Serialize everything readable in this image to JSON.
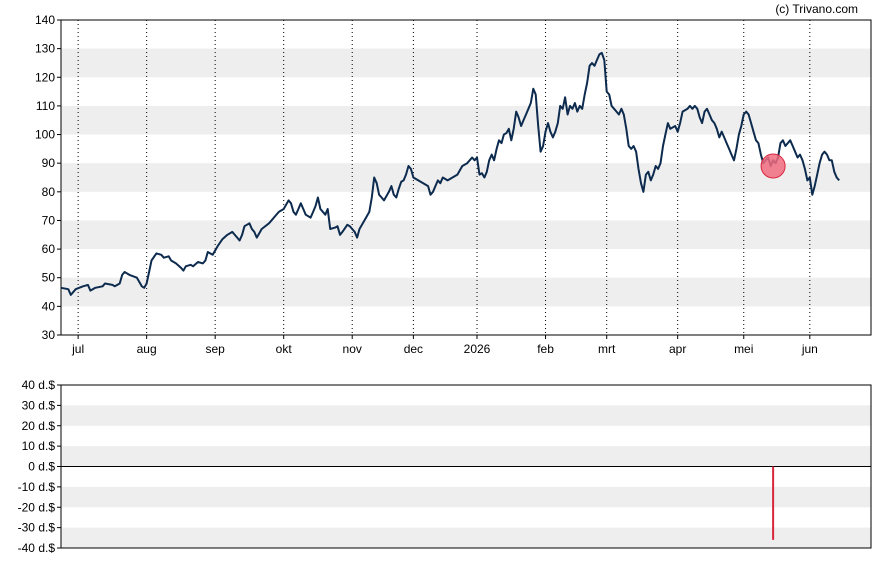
{
  "copyright": "(c) Trivano.com",
  "colors": {
    "price_line": "#0d2b4e",
    "band": "#eeeeee",
    "grid": "#000000",
    "marker_fill": "#f06b7f",
    "marker_stroke": "#d9263f",
    "volume_bar": "#d9263f",
    "zero_line": "#000000"
  },
  "chart_data": [
    {
      "type": "line",
      "name": "price-chart",
      "ylim": [
        30,
        140
      ],
      "yticks": [
        "30",
        "40",
        "50",
        "60",
        "70",
        "80",
        "90",
        "100",
        "110",
        "120",
        "130",
        "140"
      ],
      "month_labels": [
        "jul",
        "aug",
        "sep",
        "okt",
        "nov",
        "dec",
        "2026",
        "feb",
        "mrt",
        "apr",
        "mei",
        "jun"
      ],
      "month_positions": [
        7,
        35,
        63,
        91,
        119,
        144,
        170,
        198,
        223,
        252,
        279,
        306
      ],
      "x_range": [
        0,
        331
      ],
      "grid": "vertical dotted at month starts, alternating horizontal bands",
      "series_points": [
        [
          0,
          46.5
        ],
        [
          3,
          46
        ],
        [
          4,
          44
        ],
        [
          6,
          46
        ],
        [
          9,
          47
        ],
        [
          11,
          47.5
        ],
        [
          12,
          45.5
        ],
        [
          14,
          46.5
        ],
        [
          17,
          47
        ],
        [
          18,
          48
        ],
        [
          21,
          47.5
        ],
        [
          22,
          47
        ],
        [
          23,
          47.5
        ],
        [
          24,
          48
        ],
        [
          25,
          51
        ],
        [
          26,
          52
        ],
        [
          28,
          51
        ],
        [
          31,
          50
        ],
        [
          33,
          47
        ],
        [
          34,
          46.5
        ],
        [
          35,
          48
        ],
        [
          36,
          52
        ],
        [
          37,
          56
        ],
        [
          39,
          58.5
        ],
        [
          41,
          58
        ],
        [
          42,
          57
        ],
        [
          44,
          57.5
        ],
        [
          45,
          56
        ],
        [
          47,
          55
        ],
        [
          49,
          53.5
        ],
        [
          50,
          52.5
        ],
        [
          51,
          54
        ],
        [
          53,
          54.5
        ],
        [
          54,
          54
        ],
        [
          56,
          55.5
        ],
        [
          58,
          55
        ],
        [
          59,
          56
        ],
        [
          60,
          59
        ],
        [
          62,
          58
        ],
        [
          64,
          61
        ],
        [
          66,
          63.5
        ],
        [
          68,
          65
        ],
        [
          70,
          66
        ],
        [
          72,
          64
        ],
        [
          73,
          63
        ],
        [
          74,
          65
        ],
        [
          75,
          68
        ],
        [
          77,
          69
        ],
        [
          78,
          67
        ],
        [
          79,
          66
        ],
        [
          80,
          64
        ],
        [
          82,
          67
        ],
        [
          85,
          69
        ],
        [
          87,
          71
        ],
        [
          89,
          73
        ],
        [
          91,
          74
        ],
        [
          92,
          75.5
        ],
        [
          93,
          77
        ],
        [
          94,
          76
        ],
        [
          95,
          73
        ],
        [
          96,
          72
        ],
        [
          97,
          74
        ],
        [
          98,
          76
        ],
        [
          99,
          74
        ],
        [
          100,
          72
        ],
        [
          102,
          71
        ],
        [
          103,
          73
        ],
        [
          104,
          75
        ],
        [
          105,
          78
        ],
        [
          106,
          74
        ],
        [
          108,
          72
        ],
        [
          109,
          74
        ],
        [
          110,
          67
        ],
        [
          112,
          67.5
        ],
        [
          113,
          68
        ],
        [
          114,
          65
        ],
        [
          115,
          66
        ],
        [
          117,
          68.5
        ],
        [
          118,
          68
        ],
        [
          119,
          67
        ],
        [
          120,
          66
        ],
        [
          121,
          64
        ],
        [
          122,
          67
        ],
        [
          124,
          70
        ],
        [
          126,
          73
        ],
        [
          127,
          78
        ],
        [
          128,
          85
        ],
        [
          129,
          83
        ],
        [
          130,
          79
        ],
        [
          131,
          78
        ],
        [
          132,
          77
        ],
        [
          134,
          80
        ],
        [
          135,
          82
        ],
        [
          136,
          79
        ],
        [
          137,
          78
        ],
        [
          138,
          81
        ],
        [
          139,
          83.5
        ],
        [
          140,
          84
        ],
        [
          141,
          86
        ],
        [
          142,
          89
        ],
        [
          143,
          88
        ],
        [
          144,
          85
        ],
        [
          146,
          84
        ],
        [
          148,
          83
        ],
        [
          150,
          82
        ],
        [
          151,
          79
        ],
        [
          152,
          80
        ],
        [
          153,
          82
        ],
        [
          154,
          84
        ],
        [
          155,
          83
        ],
        [
          156,
          85
        ],
        [
          158,
          84
        ],
        [
          160,
          85
        ],
        [
          162,
          86
        ],
        [
          164,
          89
        ],
        [
          166,
          90
        ],
        [
          168,
          92
        ],
        [
          169,
          91
        ],
        [
          170,
          92
        ],
        [
          171,
          86
        ],
        [
          172,
          86.5
        ],
        [
          173,
          85
        ],
        [
          174,
          87
        ],
        [
          175,
          91
        ],
        [
          176,
          93
        ],
        [
          177,
          91
        ],
        [
          178,
          95
        ],
        [
          179,
          98
        ],
        [
          180,
          97
        ],
        [
          181,
          100
        ],
        [
          182,
          100.5
        ],
        [
          183,
          102
        ],
        [
          184,
          98
        ],
        [
          185,
          102
        ],
        [
          186,
          108
        ],
        [
          187,
          106
        ],
        [
          188,
          103
        ],
        [
          189,
          105
        ],
        [
          190,
          107
        ],
        [
          191,
          109
        ],
        [
          192,
          111
        ],
        [
          193,
          116
        ],
        [
          194,
          114
        ],
        [
          195,
          103
        ],
        [
          196,
          94
        ],
        [
          197,
          96
        ],
        [
          198,
          101
        ],
        [
          199,
          104
        ],
        [
          200,
          101
        ],
        [
          201,
          99
        ],
        [
          202,
          101
        ],
        [
          203,
          104
        ],
        [
          204,
          110
        ],
        [
          205,
          109
        ],
        [
          206,
          113
        ],
        [
          207,
          107
        ],
        [
          208,
          110
        ],
        [
          209,
          109
        ],
        [
          210,
          111
        ],
        [
          211,
          108
        ],
        [
          212,
          110
        ],
        [
          213,
          109
        ],
        [
          214,
          114
        ],
        [
          215,
          118
        ],
        [
          216,
          124
        ],
        [
          217,
          125
        ],
        [
          218,
          124
        ],
        [
          219,
          126
        ],
        [
          220,
          128
        ],
        [
          221,
          128.5
        ],
        [
          222,
          126
        ],
        [
          223,
          115
        ],
        [
          224,
          114
        ],
        [
          225,
          110
        ],
        [
          226,
          109
        ],
        [
          227,
          108
        ],
        [
          228,
          107
        ],
        [
          229,
          109
        ],
        [
          230,
          107
        ],
        [
          231,
          102
        ],
        [
          232,
          96
        ],
        [
          233,
          95
        ],
        [
          234,
          96
        ],
        [
          235,
          94
        ],
        [
          236,
          88
        ],
        [
          237,
          83
        ],
        [
          238,
          80
        ],
        [
          239,
          86
        ],
        [
          240,
          87
        ],
        [
          241,
          84
        ],
        [
          242,
          86
        ],
        [
          243,
          89
        ],
        [
          244,
          88
        ],
        [
          245,
          90
        ],
        [
          246,
          96
        ],
        [
          247,
          100
        ],
        [
          248,
          104
        ],
        [
          249,
          102
        ],
        [
          250,
          102.5
        ],
        [
          251,
          103
        ],
        [
          252,
          101
        ],
        [
          253,
          104
        ],
        [
          254,
          108
        ],
        [
          255,
          108.5
        ],
        [
          256,
          109
        ],
        [
          257,
          110
        ],
        [
          258,
          109
        ],
        [
          259,
          110
        ],
        [
          260,
          109
        ],
        [
          261,
          106
        ],
        [
          262,
          104
        ],
        [
          263,
          108
        ],
        [
          264,
          109
        ],
        [
          265,
          107
        ],
        [
          266,
          105
        ],
        [
          267,
          104
        ],
        [
          268,
          102
        ],
        [
          269,
          99
        ],
        [
          270,
          101
        ],
        [
          271,
          99
        ],
        [
          272,
          97
        ],
        [
          273,
          95
        ],
        [
          274,
          93
        ],
        [
          275,
          91
        ],
        [
          276,
          95
        ],
        [
          277,
          100
        ],
        [
          278,
          103
        ],
        [
          279,
          107
        ],
        [
          280,
          108
        ],
        [
          281,
          107
        ],
        [
          282,
          104
        ],
        [
          283,
          101
        ],
        [
          284,
          98
        ],
        [
          285,
          97
        ],
        [
          286,
          93
        ],
        [
          287,
          90
        ],
        [
          288,
          91
        ],
        [
          289,
          92
        ],
        [
          290,
          89
        ],
        [
          291,
          91
        ],
        [
          292,
          90
        ],
        [
          293,
          92
        ],
        [
          294,
          97
        ],
        [
          295,
          98
        ],
        [
          296,
          96
        ],
        [
          297,
          97
        ],
        [
          298,
          98
        ],
        [
          299,
          96
        ],
        [
          300,
          94
        ],
        [
          301,
          92
        ],
        [
          302,
          93
        ],
        [
          303,
          91
        ],
        [
          304,
          88
        ],
        [
          305,
          84
        ],
        [
          306,
          85
        ],
        [
          307,
          79
        ],
        [
          308,
          82
        ],
        [
          309,
          86
        ],
        [
          310,
          90
        ],
        [
          311,
          93
        ],
        [
          312,
          94
        ],
        [
          313,
          93
        ],
        [
          314,
          91
        ],
        [
          315,
          91
        ],
        [
          316,
          87
        ],
        [
          317,
          85
        ],
        [
          318,
          84
        ]
      ],
      "marker": {
        "x": 291,
        "y": 89
      }
    },
    {
      "type": "bar",
      "name": "insider-chart",
      "ylim": [
        -40,
        40
      ],
      "yticks": [
        "-40 d.$",
        "-30 d.$",
        "-20 d.$",
        "-10 d.$",
        "0 d.$",
        "10 d.$",
        "20 d.$",
        "30 d.$",
        "40 d.$"
      ],
      "x_range": [
        0,
        331
      ],
      "bars": [
        {
          "x": 291,
          "value": -36
        }
      ]
    }
  ]
}
